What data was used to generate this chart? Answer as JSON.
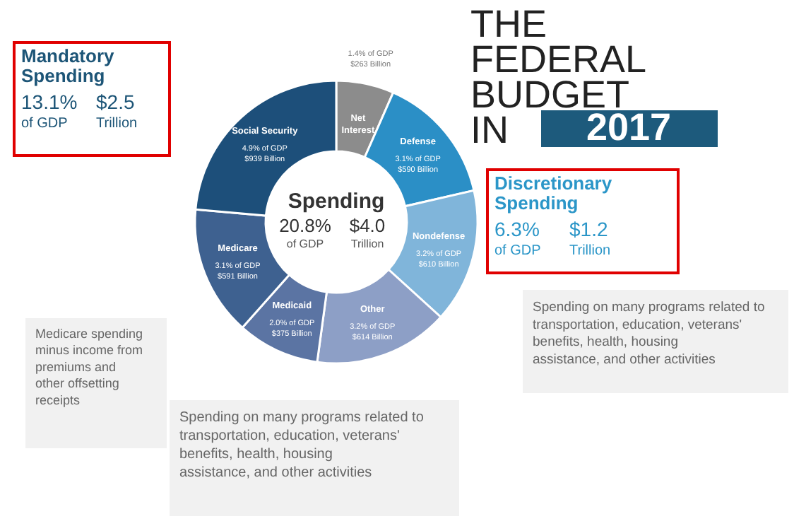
{
  "chart_data": {
    "type": "donut",
    "title": "THE FEDERAL BUDGET IN 2017",
    "categories": [
      "Net Interest",
      "Defense",
      "Nondefense",
      "Other",
      "Medicaid",
      "Medicare",
      "Social Security"
    ],
    "values": [
      263,
      590,
      610,
      614,
      375,
      591,
      939
    ],
    "colors": [
      "#8c8c8c",
      "#2b8fc6",
      "#80b5da",
      "#8d9fc6",
      "#5b74a3",
      "#3e6190",
      "#1d4f7a"
    ],
    "value_labels": [
      "1.4% of GDP\n$263 Billion",
      "3.1% of GDP\n$590 Billion",
      "3.2% of GDP\n$610 Billion",
      "3.2% of GDP\n$614 Billion",
      "2.0% of GDP\n$375 Billion",
      "3.1% of GDP\n$591 Billion",
      "4.9% of GDP\n$939 Billion"
    ],
    "annotations": [
      "Spending",
      "20.8% of GDP",
      "$4.0 Trillion",
      "Mandatory Spending",
      "13.1% of GDP",
      "$2.5 Trillion",
      "Discretionary Spending",
      "6.3% of GDP",
      "$1.2 Trillion",
      "Medicare spending minus income from premiums and other offsetting receipts",
      "Spending on many programs related to transportation, education, veterans' benefits, health, housing assistance, and other activities",
      "Spending on many programs related to transportation, education, veterans' benefits, health, housing assistance, and other activities"
    ]
  }
}
